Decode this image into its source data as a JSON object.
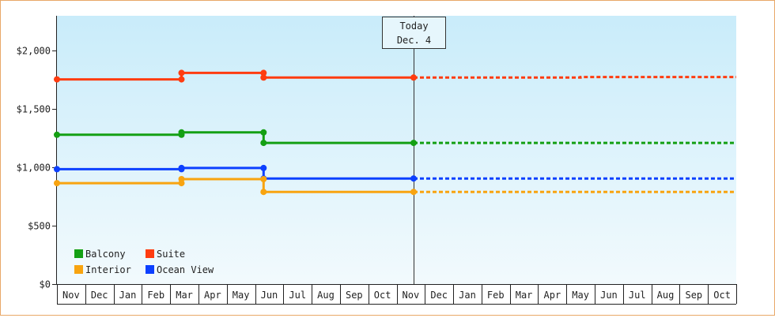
{
  "chart_data": {
    "type": "line",
    "step": true,
    "title": "",
    "xlabel": "",
    "ylabel": "",
    "ylim": [
      0,
      2300
    ],
    "y_ticks": [
      {
        "value": 0,
        "label": "$0"
      },
      {
        "value": 500,
        "label": "$500"
      },
      {
        "value": 1000,
        "label": "$1,000"
      },
      {
        "value": 1500,
        "label": "$1,500"
      },
      {
        "value": 2000,
        "label": "$2,000"
      }
    ],
    "months": [
      "Nov",
      "Dec",
      "Jan",
      "Feb",
      "Mar",
      "Apr",
      "May",
      "Jun",
      "Jul",
      "Aug",
      "Sep",
      "Oct",
      "Nov",
      "Dec",
      "Jan",
      "Feb",
      "Mar",
      "Apr",
      "May",
      "Jun",
      "Jul",
      "Aug",
      "Sep",
      "Oct"
    ],
    "today": {
      "line1": "Today",
      "line2": "Dec. 4",
      "x": 12.6
    },
    "background_gradient": [
      "#c9ecfa",
      "#f2fafd"
    ],
    "legend": {
      "placement": "bottom-left",
      "items": [
        {
          "label": "Balcony",
          "color": "#14a014"
        },
        {
          "label": "Suite",
          "color": "#ff3c10"
        },
        {
          "label": "Interior",
          "color": "#f8a410"
        },
        {
          "label": "Ocean View",
          "color": "#0c40ff"
        }
      ]
    },
    "series": [
      {
        "name": "Suite",
        "color": "#ff3c10",
        "points": [
          [
            0,
            1755
          ],
          [
            4.4,
            1755
          ],
          [
            4.4,
            1810
          ],
          [
            7.3,
            1810
          ],
          [
            7.3,
            1770
          ],
          [
            12.6,
            1770
          ]
        ],
        "projection": [
          [
            12.6,
            1770
          ],
          [
            18.5,
            1770
          ],
          [
            18.5,
            1775
          ],
          [
            24,
            1775
          ]
        ]
      },
      {
        "name": "Balcony",
        "color": "#14a014",
        "points": [
          [
            0,
            1280
          ],
          [
            4.4,
            1280
          ],
          [
            4.4,
            1300
          ],
          [
            7.3,
            1300
          ],
          [
            7.3,
            1210
          ],
          [
            12.6,
            1210
          ]
        ],
        "projection": [
          [
            12.6,
            1210
          ],
          [
            24,
            1210
          ]
        ]
      },
      {
        "name": "Ocean View",
        "color": "#0c40ff",
        "points": [
          [
            0,
            985
          ],
          [
            4.4,
            985
          ],
          [
            4.4,
            995
          ],
          [
            7.3,
            995
          ],
          [
            7.3,
            905
          ],
          [
            12.6,
            905
          ]
        ],
        "projection": [
          [
            12.6,
            905
          ],
          [
            24,
            905
          ]
        ]
      },
      {
        "name": "Interior",
        "color": "#f8a410",
        "points": [
          [
            0,
            865
          ],
          [
            4.4,
            865
          ],
          [
            4.4,
            900
          ],
          [
            7.3,
            900
          ],
          [
            7.3,
            790
          ],
          [
            12.6,
            790
          ]
        ],
        "projection": [
          [
            12.6,
            790
          ],
          [
            24,
            790
          ]
        ]
      }
    ]
  }
}
